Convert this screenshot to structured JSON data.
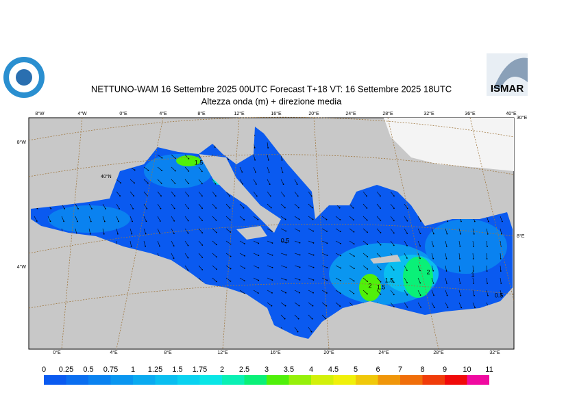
{
  "header": {
    "title": "NETTUNO-WAM  16 Settembre 2025 00UTC Forecast T+18 VT: 16 Settembre 2025 18UTC",
    "subtitle": "Altezza onda (m) + direzione media",
    "right_logo": "ISMAR"
  },
  "map": {
    "top_labels": [
      "8°W",
      "4°W",
      "0°E",
      "4°E",
      "8°E",
      "12°E",
      "16°E",
      "20°E",
      "24°E",
      "28°E",
      "32°E",
      "36°E",
      "40°E"
    ],
    "bottom_labels": [
      "0°E",
      "4°E",
      "8°E",
      "12°E",
      "16°E",
      "20°E",
      "24°E",
      "28°E",
      "32°E"
    ],
    "left_labels": [
      "8°W",
      "4°W"
    ],
    "right_labels": [
      "30°E",
      "8°E"
    ],
    "inner_labels": [
      "40°N"
    ],
    "contour_labels": [
      "1.5",
      "0.5",
      "1.5",
      "2",
      "1.5",
      "2",
      "1",
      "0.5"
    ]
  },
  "colorbar": {
    "labels": [
      "0",
      "0.25",
      "0.5",
      "0.75",
      "1",
      "1.25",
      "1.5",
      "1.75",
      "2",
      "2.5",
      "3",
      "3.5",
      "4",
      "4.5",
      "5",
      "6",
      "7",
      "8",
      "9",
      "10",
      "11"
    ],
    "colors": [
      "#0a5af0",
      "#0a6ef0",
      "#0a82f0",
      "#0a96f0",
      "#0aaaf0",
      "#0abef0",
      "#0ad2f0",
      "#0ae6e6",
      "#0af0b4",
      "#0af078",
      "#50f00a",
      "#96f00a",
      "#d2f00a",
      "#f0f00a",
      "#f0c80a",
      "#f0960a",
      "#f06e0a",
      "#f03c0a",
      "#f00a0a",
      "#f00aa0"
    ]
  }
}
